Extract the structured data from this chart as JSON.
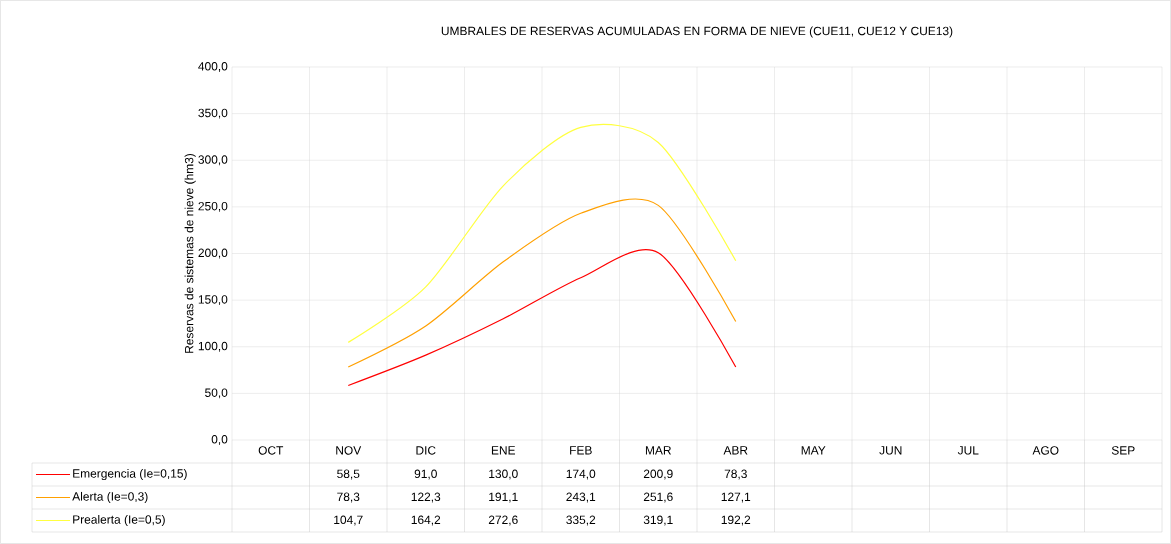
{
  "chart_data": {
    "type": "line",
    "title": "UMBRALES DE RESERVAS ACUMULADAS EN FORMA DE NIEVE (CUE11, CUE12 Y CUE13)",
    "ylabel": "Reservas de sistemas de nieve (hm3)",
    "categories": [
      "OCT",
      "NOV",
      "DIC",
      "ENE",
      "FEB",
      "MAR",
      "ABR",
      "MAY",
      "JUN",
      "JUL",
      "AGO",
      "SEP"
    ],
    "series": [
      {
        "name": "Emergencia (Ie=0,15)",
        "color": "#ff0000",
        "values": [
          null,
          58.5,
          91.0,
          130.0,
          174.0,
          200.9,
          78.3,
          null,
          null,
          null,
          null,
          null
        ],
        "value_labels": [
          null,
          "58,5",
          "91,0",
          "130,0",
          "174,0",
          "200,9",
          "78,3",
          null,
          null,
          null,
          null,
          null
        ]
      },
      {
        "name": "Alerta (Ie=0,3)",
        "color": "#ffa000",
        "values": [
          null,
          78.3,
          122.3,
          191.1,
          243.1,
          251.6,
          127.1,
          null,
          null,
          null,
          null,
          null
        ],
        "value_labels": [
          null,
          "78,3",
          "122,3",
          "191,1",
          "243,1",
          "251,6",
          "127,1",
          null,
          null,
          null,
          null,
          null
        ]
      },
      {
        "name": "Prealerta (Ie=0,5)",
        "color": "#ffff40",
        "values": [
          null,
          104.7,
          164.2,
          272.6,
          335.2,
          319.1,
          192.2,
          null,
          null,
          null,
          null,
          null
        ],
        "value_labels": [
          null,
          "104,7",
          "164,2",
          "272,6",
          "335,2",
          "319,1",
          "192,2",
          null,
          null,
          null,
          null,
          null
        ]
      }
    ],
    "ylim": [
      0,
      400
    ],
    "yticks": [
      {
        "value": 0,
        "label": "0,0"
      },
      {
        "value": 50,
        "label": "50,0"
      },
      {
        "value": 100,
        "label": "100,0"
      },
      {
        "value": 150,
        "label": "150,0"
      },
      {
        "value": 200,
        "label": "200,0"
      },
      {
        "value": 250,
        "label": "250,0"
      },
      {
        "value": 300,
        "label": "300,0"
      },
      {
        "value": 350,
        "label": "350,0"
      },
      {
        "value": 400,
        "label": "400,0"
      }
    ],
    "grid": true,
    "legend": "bottom",
    "line_style": "solid",
    "marker": "none"
  }
}
